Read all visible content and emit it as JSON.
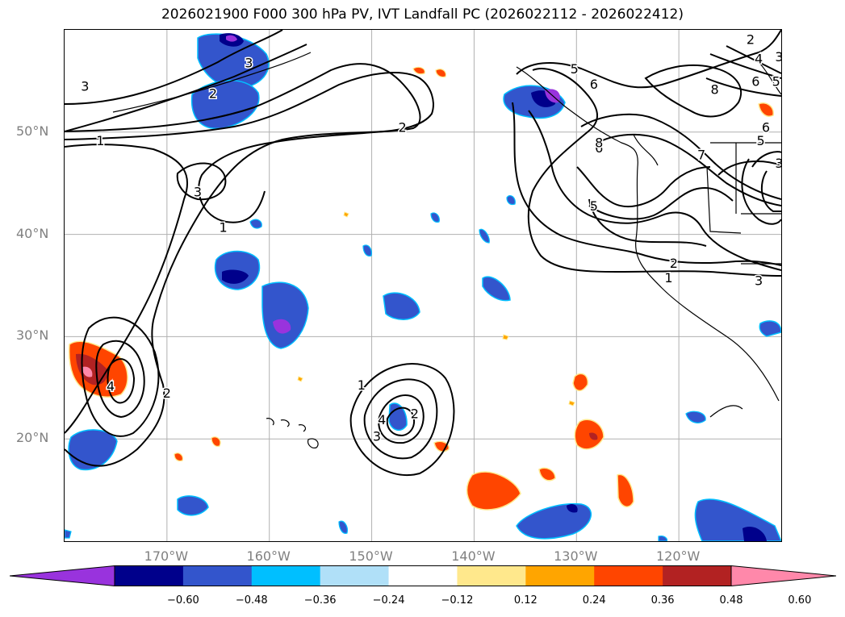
{
  "title": "2026021900 F000 300 hPa PV, IVT Landfall PC (2026022112 - 2026022412)",
  "lat_labels": [
    {
      "text": "50°N",
      "lat": 50
    },
    {
      "text": "40°N",
      "lat": 40
    },
    {
      "text": "30°N",
      "lat": 30
    },
    {
      "text": "20°N",
      "lat": 20
    }
  ],
  "lon_labels": [
    {
      "text": "170°W",
      "lon": -170
    },
    {
      "text": "160°W",
      "lon": -160
    },
    {
      "text": "150°W",
      "lon": -150
    },
    {
      "text": "140°W",
      "lon": -140
    },
    {
      "text": "130°W",
      "lon": -130
    },
    {
      "text": "120°W",
      "lon": -120
    }
  ],
  "colorbar": {
    "levels": [
      -0.6,
      -0.48,
      -0.36,
      -0.24,
      -0.12,
      0.12,
      0.24,
      0.36,
      0.48,
      0.6
    ],
    "tick_labels": [
      "−0.60",
      "−0.48",
      "−0.36",
      "−0.24",
      "−0.12",
      "0.12",
      "0.24",
      "0.36",
      "0.48",
      "0.60"
    ],
    "colors": [
      "#9933dd",
      "#00008b",
      "#3355cc",
      "#00bfff",
      "#b0e0f8",
      "#ffffff",
      "#ffe88c",
      "#ffa500",
      "#ff4500",
      "#b22222",
      "#ff88aa"
    ]
  },
  "contour_labels": [
    {
      "text": "3",
      "lon": -178,
      "lat": 54.5
    },
    {
      "text": "3",
      "lon": -162,
      "lat": 56.8
    },
    {
      "text": "2",
      "lon": -165.5,
      "lat": 53.8
    },
    {
      "text": "2",
      "lon": -147,
      "lat": 50.5
    },
    {
      "text": "1",
      "lon": -176.5,
      "lat": 49.2
    },
    {
      "text": "3",
      "lon": -167,
      "lat": 44.2
    },
    {
      "text": "1",
      "lon": -164.5,
      "lat": 40.7
    },
    {
      "text": "4",
      "lon": -175.5,
      "lat": 25.2
    },
    {
      "text": "2",
      "lon": -170,
      "lat": 24.5
    },
    {
      "text": "1",
      "lon": -151,
      "lat": 25.3
    },
    {
      "text": "4",
      "lon": -149,
      "lat": 21.9
    },
    {
      "text": "3",
      "lon": -149.5,
      "lat": 20.3
    },
    {
      "text": "2",
      "lon": -145.8,
      "lat": 22.5
    },
    {
      "text": "5",
      "lon": -130.2,
      "lat": 56.2
    },
    {
      "text": "6",
      "lon": -128.3,
      "lat": 54.7
    },
    {
      "text": "6",
      "lon": -127.8,
      "lat": 48.5
    },
    {
      "text": "5",
      "lon": -128.3,
      "lat": 42.8
    },
    {
      "text": "7",
      "lon": -117.8,
      "lat": 47.8
    },
    {
      "text": "8",
      "lon": -116.5,
      "lat": 54.2
    },
    {
      "text": "8",
      "lon": -127.8,
      "lat": 49.0
    },
    {
      "text": "2",
      "lon": -120.5,
      "lat": 37.2
    },
    {
      "text": "1",
      "lon": -121,
      "lat": 35.8
    },
    {
      "text": "3",
      "lon": -112.2,
      "lat": 35.5
    },
    {
      "text": "2",
      "lon": -113,
      "lat": 59.1
    },
    {
      "text": "4",
      "lon": -112.2,
      "lat": 57.2
    },
    {
      "text": "3",
      "lon": -110.2,
      "lat": 57.4
    },
    {
      "text": "6",
      "lon": -112.5,
      "lat": 55.0
    },
    {
      "text": "5",
      "lon": -110.5,
      "lat": 55.0
    },
    {
      "text": "6",
      "lon": -111.5,
      "lat": 50.5
    },
    {
      "text": "5",
      "lon": -112,
      "lat": 49.2
    },
    {
      "text": "3",
      "lon": -110.2,
      "lat": 47.0
    }
  ]
}
